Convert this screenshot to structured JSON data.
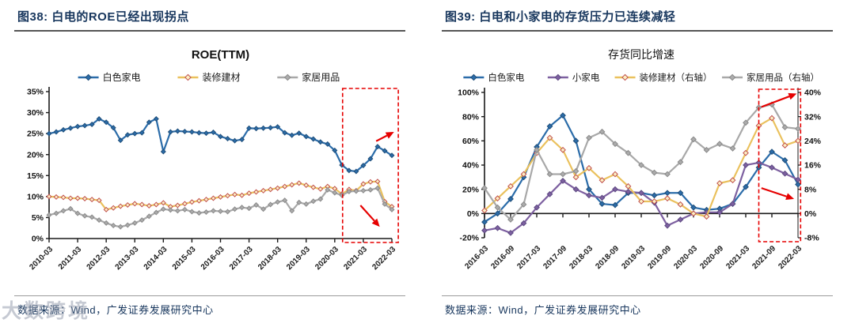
{
  "page": {
    "background": "#ffffff",
    "accent_red": "#E60000",
    "caption_color": "#17365D"
  },
  "watermark": "大数跨境",
  "figures": [
    {
      "caption": "图38:  白电的ROE已经出现拐点",
      "source": "数据来源：Wind，广发证券发展研究中心"
    },
    {
      "caption": "图39:  白电和小家电的存货压力已连续减轻",
      "source": "数据来源：Wind，广发证券发展研究中心"
    }
  ],
  "chart_data": [
    {
      "type": "line",
      "title": "ROE(TTM)",
      "legend_position": "top",
      "grid": false,
      "n_points": 49,
      "points_per_tick": 4,
      "x_tick_labels": [
        "2010-03",
        "2011-03",
        "2012-03",
        "2013-03",
        "2014-03",
        "2015-03",
        "2016-03",
        "2017-03",
        "2018-03",
        "2019-03",
        "2020-03",
        "2021-03",
        "2022-03"
      ],
      "left_axis": {
        "min": 0,
        "max": 35,
        "tick_values": [
          0,
          5,
          10,
          15,
          20,
          25,
          30,
          35
        ],
        "tick_labels": [
          "0%",
          "5%",
          "10%",
          "15%",
          "20%",
          "25%",
          "30%",
          "35%"
        ]
      },
      "series": [
        {
          "name": "白色家电",
          "axis": "left",
          "color": "#2B6CA9",
          "marker_fill": "#2B6CA9",
          "marker_stroke": "#1F4E79",
          "values": [
            25.0,
            25.4,
            25.9,
            26.3,
            26.7,
            26.9,
            27.2,
            28.5,
            27.7,
            26.4,
            23.4,
            24.7,
            25.0,
            25.2,
            27.7,
            28.5,
            20.7,
            25.4,
            25.6,
            25.5,
            25.4,
            25.2,
            25.1,
            25.3,
            24.3,
            23.8,
            23.3,
            23.6,
            26.3,
            26.2,
            26.3,
            26.4,
            26.6,
            25.2,
            24.6,
            25.1,
            24.3,
            23.7,
            23.0,
            22.5,
            21.0,
            17.5,
            16.2,
            16.0,
            17.4,
            19.0,
            21.9,
            20.9,
            19.8
          ]
        },
        {
          "name": "装修建材",
          "axis": "left",
          "color": "#EAC15D",
          "marker_fill": "#FCEFC3",
          "marker_stroke": "#C0504D",
          "values": [
            10.0,
            9.9,
            9.8,
            9.6,
            9.6,
            9.5,
            9.3,
            9.1,
            6.9,
            7.3,
            7.7,
            8.0,
            8.3,
            8.1,
            7.8,
            8.1,
            8.5,
            7.6,
            7.9,
            8.3,
            8.7,
            9.0,
            9.3,
            9.6,
            9.9,
            10.2,
            10.5,
            10.3,
            10.8,
            11.1,
            11.4,
            11.7,
            12.0,
            12.4,
            12.8,
            13.2,
            12.7,
            12.2,
            11.8,
            12.4,
            11.9,
            10.6,
            11.7,
            11.4,
            13.0,
            13.5,
            13.6,
            8.8,
            7.6
          ]
        },
        {
          "name": "家居用品",
          "axis": "left",
          "color": "#A8A8A8",
          "marker_fill": "#ACACAC",
          "marker_stroke": "#8A8A8A",
          "values": [
            5.6,
            6.0,
            6.6,
            7.1,
            6.0,
            5.4,
            5.1,
            4.4,
            3.7,
            3.1,
            2.8,
            3.2,
            3.7,
            4.4,
            5.3,
            6.2,
            7.0,
            6.8,
            6.6,
            6.9,
            6.4,
            6.1,
            6.3,
            6.6,
            6.5,
            6.4,
            7.0,
            7.4,
            7.2,
            8.0,
            7.0,
            8.1,
            8.7,
            9.1,
            6.6,
            8.6,
            8.2,
            8.9,
            9.4,
            11.6,
            10.9,
            10.3,
            11.2,
            11.3,
            11.4,
            11.6,
            12.0,
            8.2,
            6.9
          ]
        }
      ],
      "annotations": {
        "box": {
          "from": 41.1,
          "to": 48.9
        },
        "arrows": [
          {
            "from": [
              45.8,
              23.2
            ],
            "to": [
              48.3,
              25.4
            ]
          },
          {
            "from": [
              43.6,
              7.9
            ],
            "to": [
              46.3,
              2.8
            ]
          }
        ]
      }
    },
    {
      "type": "line",
      "title": "存货同比增速",
      "legend_position": "top",
      "grid": false,
      "n_points": 25,
      "points_per_tick": 2,
      "x_tick_labels": [
        "2016-03",
        "2016-09",
        "2017-03",
        "2017-09",
        "2018-03",
        "2018-09",
        "2019-03",
        "2019-09",
        "2020-03",
        "2020-09",
        "2021-03",
        "2021-09",
        "2022-03"
      ],
      "left_axis": {
        "min": -20,
        "max": 100,
        "tick_values": [
          -20,
          0,
          20,
          40,
          60,
          80,
          100
        ],
        "tick_labels": [
          "-20%",
          "0%",
          "20%",
          "40%",
          "60%",
          "80%",
          "100%"
        ]
      },
      "right_axis": {
        "min": -8,
        "max": 40,
        "tick_values": [
          -8,
          0,
          8,
          16,
          24,
          32,
          40
        ],
        "tick_labels": [
          "-8%",
          "0%",
          "8%",
          "16%",
          "24%",
          "32%",
          "40%"
        ]
      },
      "series": [
        {
          "name": "白色家电",
          "axis": "left",
          "color": "#2B6CA9",
          "marker_fill": "#2B6CA9",
          "marker_stroke": "#1F4E79",
          "values": [
            -7,
            0,
            12,
            30,
            55,
            72,
            81,
            60,
            20,
            8,
            7,
            17,
            17,
            15,
            17,
            17,
            5,
            3,
            4,
            8,
            22,
            38,
            51,
            44,
            24
          ]
        },
        {
          "name": "小家电",
          "axis": "left",
          "color": "#7D60A0",
          "marker_fill": "#7D60A0",
          "marker_stroke": "#5E4A82",
          "values": [
            -14,
            -12,
            -16,
            -8,
            5,
            16,
            27,
            20,
            15,
            13,
            20,
            18,
            17,
            9,
            -10,
            -5,
            0,
            1,
            1,
            8,
            40,
            42,
            38,
            33,
            28
          ]
        },
        {
          "name": "装修建材（右轴）",
          "axis": "right",
          "color": "#EAC15D",
          "marker_fill": "#FCEFC3",
          "marker_stroke": "#C0504D",
          "values": [
            1,
            5,
            9,
            13,
            20,
            25,
            21,
            12,
            15,
            11,
            13,
            9,
            4,
            4,
            5,
            3,
            0,
            -1,
            10,
            11,
            20,
            29,
            31.5,
            22.5,
            24
          ]
        },
        {
          "name": "家居用品（右轴）",
          "axis": "right",
          "color": "#A8A8A8",
          "marker_fill": "#ACACAC",
          "marker_stroke": "#8A8A8A",
          "values": [
            8.4,
            2,
            -2,
            3,
            21,
            13,
            13,
            14,
            25,
            27,
            23,
            20,
            16,
            13.5,
            13,
            17,
            24.5,
            21,
            23,
            21.5,
            30,
            35,
            36,
            28.5,
            28
          ]
        }
      ],
      "annotations": {
        "box": {
          "from": 21.0,
          "to": 24.2
        },
        "arrows": [
          {
            "from": [
              21.2,
              88
            ],
            "to": [
              23.9,
              99
            ]
          },
          {
            "from": [
              21.2,
              21
            ],
            "to": [
              23.7,
              12
            ]
          }
        ]
      }
    }
  ]
}
